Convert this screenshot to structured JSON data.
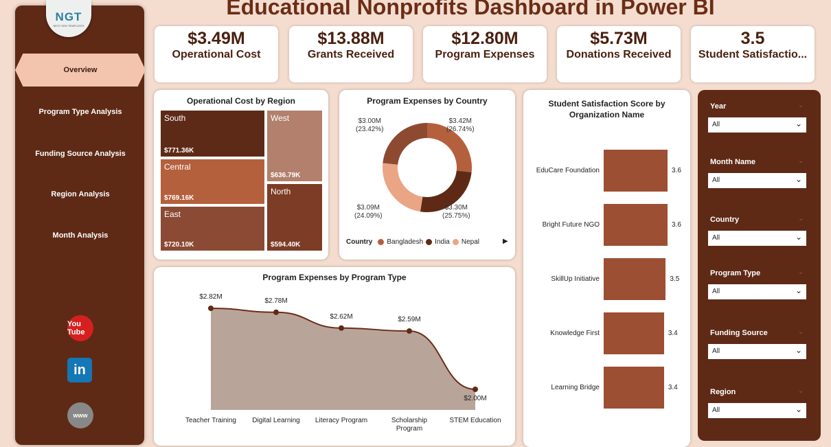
{
  "title": "Educational Nonprofits Dashboard in Power BI",
  "logo": {
    "text": "NGT",
    "subtext": "NEXT GEN TEMPLATES"
  },
  "sidebar": {
    "items": [
      {
        "label": "Overview",
        "active": true
      },
      {
        "label": "Program Type Analysis"
      },
      {
        "label": "Funding Source Analysis"
      },
      {
        "label": "Region Analysis"
      },
      {
        "label": "Month Analysis"
      }
    ],
    "social": [
      {
        "icon": "youtube-icon",
        "label": "You Tube"
      },
      {
        "icon": "linkedin-icon",
        "label": "in"
      },
      {
        "icon": "globe-icon",
        "label": "www"
      }
    ]
  },
  "kpis": [
    {
      "value": "$3.49M",
      "label": "Operational Cost"
    },
    {
      "value": "$13.88M",
      "label": "Grants Received"
    },
    {
      "value": "$12.80M",
      "label": "Program Expenses"
    },
    {
      "value": "$5.73M",
      "label": "Donations Received"
    },
    {
      "value": "3.5",
      "label": "Student Satisfactio..."
    }
  ],
  "colors": {
    "dark": "#5e2a16",
    "accent": "#9c4f32",
    "background": "#f4dccf"
  },
  "chart_data": [
    {
      "type": "treemap",
      "title": "Operational Cost by Region",
      "items": [
        {
          "label": "South",
          "value": "$771.36K",
          "color": "#5e2a18"
        },
        {
          "label": "Central",
          "value": "$769.16K",
          "color": "#b5603d"
        },
        {
          "label": "East",
          "value": "$720.10K",
          "color": "#8b4a33"
        },
        {
          "label": "West",
          "value": "$636.79K",
          "color": "#b2806c"
        },
        {
          "label": "North",
          "value": "$594.40K",
          "color": "#7c3c26"
        }
      ]
    },
    {
      "type": "pie",
      "title": "Program Expenses by Country",
      "legend_title": "Country",
      "slices": [
        {
          "name": "Bangladesh",
          "value": 3.42,
          "label": "$3.42M",
          "pct": "(26.74%)",
          "color": "#b5603d"
        },
        {
          "name": "India",
          "value": 3.3,
          "label": "$3.30M",
          "pct": "(25.75%)",
          "color": "#5e2a16"
        },
        {
          "name": "Nepal",
          "value": 3.09,
          "label": "$3.09M",
          "pct": "(24.09%)",
          "color": "#eaa585"
        },
        {
          "value": 3.0,
          "label": "$3.00M",
          "pct": "(23.42%)",
          "color": "#8e4a30"
        }
      ]
    },
    {
      "type": "bar",
      "orientation": "horizontal",
      "title": "Student Satisfaction Score by Organization Name",
      "categories": [
        "EduCare Foundation",
        "Bright Future NGO",
        "SkillUp Initiative",
        "Knowledge First",
        "Learning Bridge"
      ],
      "values": [
        3.6,
        3.6,
        3.5,
        3.4,
        3.4
      ],
      "labels": [
        "3.6",
        "3.6",
        "3.5",
        "3.4",
        "3.4"
      ]
    },
    {
      "type": "area",
      "title": "Program Expenses by Program Type",
      "categories": [
        "Teacher Training",
        "Digital Learning",
        "Literacy Program",
        "Scholarship Program",
        "STEM Education"
      ],
      "values": [
        2.82,
        2.78,
        2.62,
        2.59,
        2.0
      ],
      "labels": [
        "$2.82M",
        "$2.78M",
        "$2.62M",
        "$2.59M",
        "$2.00M"
      ]
    }
  ],
  "filters": [
    {
      "label": "Year",
      "value": "All"
    },
    {
      "label": "Month Name",
      "value": "All"
    },
    {
      "label": "Country",
      "value": "All"
    },
    {
      "label": "Program Type",
      "value": "All"
    },
    {
      "label": "Funding Source",
      "value": "All"
    },
    {
      "label": "Region",
      "value": "All"
    }
  ]
}
